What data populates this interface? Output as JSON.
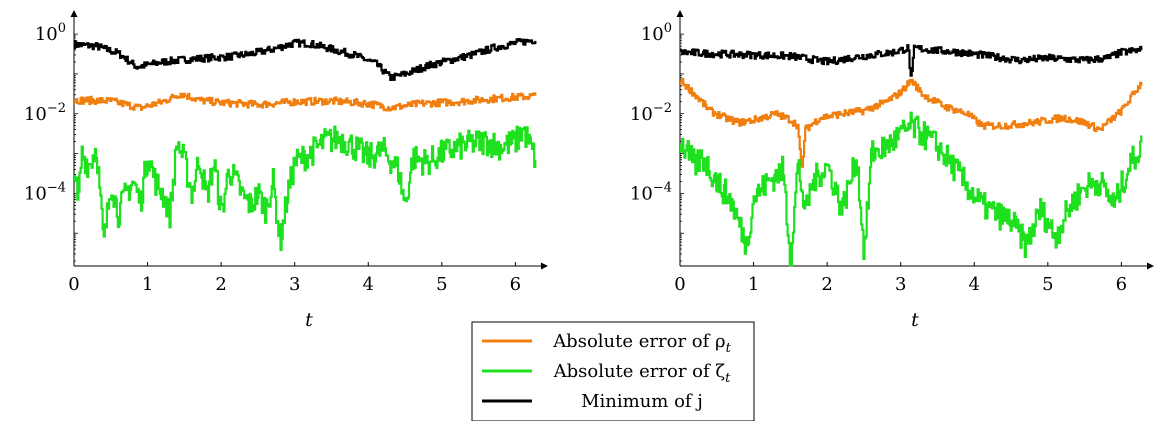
{
  "colors": {
    "rho": "#f07f10",
    "zeta": "#1ee01e",
    "jmin": "#000000"
  },
  "legend": [
    {
      "key": "rho",
      "text": "Absolute error of ρ",
      "sub": "t"
    },
    {
      "key": "zeta",
      "text": "Absolute error of ζ",
      "sub": "t"
    },
    {
      "key": "jmin",
      "text": "Minimum of j",
      "sub": ""
    }
  ],
  "chart_data": [
    {
      "type": "line",
      "xlabel": "t",
      "y_scale": "log",
      "xlim": [
        0,
        6.28
      ],
      "ylim": [
        1.5e-06,
        1.6
      ],
      "x_ticks": [
        "0",
        "1",
        "2",
        "3",
        "4",
        "5",
        "6"
      ],
      "y_ticks": [
        {
          "value": 1,
          "base": "10",
          "exp": "0"
        },
        {
          "value": 0.01,
          "base": "10",
          "exp": "−2"
        },
        {
          "value": 0.0001,
          "base": "10",
          "exp": "−4"
        }
      ],
      "series": [
        {
          "key": "jmin",
          "name": "Minimum of j",
          "x": [
            0,
            0.3,
            0.6,
            0.85,
            1.0,
            1.2,
            1.5,
            1.8,
            2.1,
            2.4,
            2.7,
            3.0,
            3.2,
            3.5,
            3.8,
            4.1,
            4.3,
            4.5,
            4.8,
            5.1,
            5.4,
            5.7,
            6.0,
            6.27
          ],
          "y": [
            0.55,
            0.5,
            0.33,
            0.15,
            0.17,
            0.2,
            0.23,
            0.25,
            0.27,
            0.32,
            0.42,
            0.6,
            0.58,
            0.42,
            0.3,
            0.18,
            0.08,
            0.1,
            0.16,
            0.22,
            0.3,
            0.45,
            0.6,
            0.72
          ]
        },
        {
          "key": "rho",
          "name": "Absolute error of ρ_t",
          "x": [
            0,
            0.5,
            0.9,
            1.2,
            1.45,
            1.7,
            2.0,
            2.5,
            3.0,
            3.5,
            4.0,
            4.3,
            4.7,
            5.2,
            5.7,
            6.27
          ],
          "y": [
            0.022,
            0.021,
            0.014,
            0.02,
            0.032,
            0.022,
            0.019,
            0.017,
            0.02,
            0.021,
            0.018,
            0.014,
            0.018,
            0.02,
            0.024,
            0.028
          ]
        },
        {
          "key": "zeta",
          "name": "Absolute error of ζ_t",
          "x": [
            0,
            0.05,
            0.1,
            0.2,
            0.3,
            0.4,
            0.5,
            0.6,
            0.7,
            0.8,
            0.9,
            1.0,
            1.1,
            1.2,
            1.3,
            1.4,
            1.5,
            1.6,
            1.7,
            1.8,
            1.9,
            2.0,
            2.1,
            2.2,
            2.3,
            2.4,
            2.5,
            2.6,
            2.7,
            2.8,
            2.9,
            3.0,
            3.2,
            3.4,
            3.6,
            3.8,
            4.0,
            4.2,
            4.4,
            4.5,
            4.6,
            4.8,
            5.0,
            5.2,
            5.4,
            5.6,
            5.8,
            6.0,
            6.1,
            6.2,
            6.27
          ],
          "y": [
            0.0006,
            4e-05,
            0.001,
            0.0005,
            0.0015,
            5e-06,
            0.0002,
            3e-05,
            0.0001,
            0.0002,
            6e-05,
            0.001,
            0.0002,
            0.0001,
            3e-05,
            0.002,
            0.0006,
            0.0001,
            0.0008,
            8e-05,
            0.0006,
            3e-05,
            0.0004,
            0.0002,
            8e-05,
            5e-05,
            0.0001,
            4e-05,
            0.0002,
            6e-06,
            0.0001,
            0.0006,
            0.001,
            0.002,
            0.0025,
            0.0015,
            0.0008,
            0.0012,
            0.0004,
            5e-05,
            0.0008,
            0.0006,
            0.001,
            0.0014,
            0.0018,
            0.002,
            0.0015,
            0.002,
            0.004,
            0.0015,
            0.0007
          ]
        }
      ]
    },
    {
      "type": "line",
      "xlabel": "t",
      "y_scale": "log",
      "xlim": [
        0,
        6.28
      ],
      "ylim": [
        1.5e-06,
        1.6
      ],
      "x_ticks": [
        "0",
        "1",
        "2",
        "3",
        "4",
        "5",
        "6"
      ],
      "y_ticks": [
        {
          "value": 1,
          "base": "10",
          "exp": "0"
        },
        {
          "value": 0.01,
          "base": "10",
          "exp": "−2"
        },
        {
          "value": 0.0001,
          "base": "10",
          "exp": "−4"
        }
      ],
      "series": [
        {
          "key": "jmin",
          "name": "Minimum of j",
          "x": [
            0,
            0.5,
            1.0,
            1.5,
            2.0,
            2.3,
            2.6,
            2.9,
            3.1,
            3.14,
            3.18,
            3.4,
            3.8,
            4.2,
            4.6,
            5.0,
            5.5,
            5.8,
            6.0,
            6.27
          ],
          "y": [
            0.35,
            0.32,
            0.3,
            0.28,
            0.2,
            0.25,
            0.3,
            0.35,
            0.45,
            0.06,
            0.45,
            0.4,
            0.35,
            0.28,
            0.22,
            0.25,
            0.22,
            0.25,
            0.35,
            0.4
          ]
        },
        {
          "key": "rho",
          "name": "Absolute error of ρ_t",
          "x": [
            0,
            0.2,
            0.4,
            0.6,
            0.8,
            1.0,
            1.3,
            1.5,
            1.6,
            1.65,
            1.7,
            1.9,
            2.2,
            2.5,
            2.8,
            3.0,
            3.14,
            3.3,
            3.6,
            3.9,
            4.1,
            4.4,
            4.8,
            5.2,
            5.5,
            5.7,
            6.0,
            6.27
          ],
          "y": [
            0.07,
            0.03,
            0.012,
            0.008,
            0.006,
            0.007,
            0.01,
            0.007,
            0.005,
            0.0003,
            0.004,
            0.008,
            0.01,
            0.012,
            0.02,
            0.035,
            0.07,
            0.03,
            0.015,
            0.01,
            0.005,
            0.005,
            0.006,
            0.008,
            0.006,
            0.004,
            0.012,
            0.06
          ]
        },
        {
          "key": "zeta",
          "name": "Absolute error of ζ_t",
          "x": [
            0,
            0.1,
            0.2,
            0.3,
            0.5,
            0.7,
            0.9,
            1.0,
            1.2,
            1.4,
            1.5,
            1.6,
            1.7,
            1.8,
            2.0,
            2.2,
            2.4,
            2.5,
            2.6,
            2.8,
            3.0,
            3.14,
            3.3,
            3.5,
            3.7,
            3.9,
            4.1,
            4.3,
            4.5,
            4.7,
            4.9,
            5.1,
            5.3,
            5.5,
            5.7,
            5.9,
            6.1,
            6.27
          ],
          "y": [
            0.002,
            0.001,
            0.0005,
            0.0008,
            0.0002,
            6e-05,
            5e-06,
            8e-05,
            0.0002,
            0.0004,
            2e-06,
            0.0006,
            3e-05,
            0.0002,
            0.0005,
            4e-05,
            0.0008,
            3e-06,
            0.001,
            0.0015,
            0.003,
            0.005,
            0.003,
            0.0015,
            0.0005,
            0.00015,
            5e-05,
            3e-05,
            2e-05,
            5e-06,
            4e-05,
            8e-06,
            5e-05,
            0.00015,
            0.0002,
            5e-05,
            0.0005,
            0.0015
          ]
        }
      ]
    }
  ]
}
